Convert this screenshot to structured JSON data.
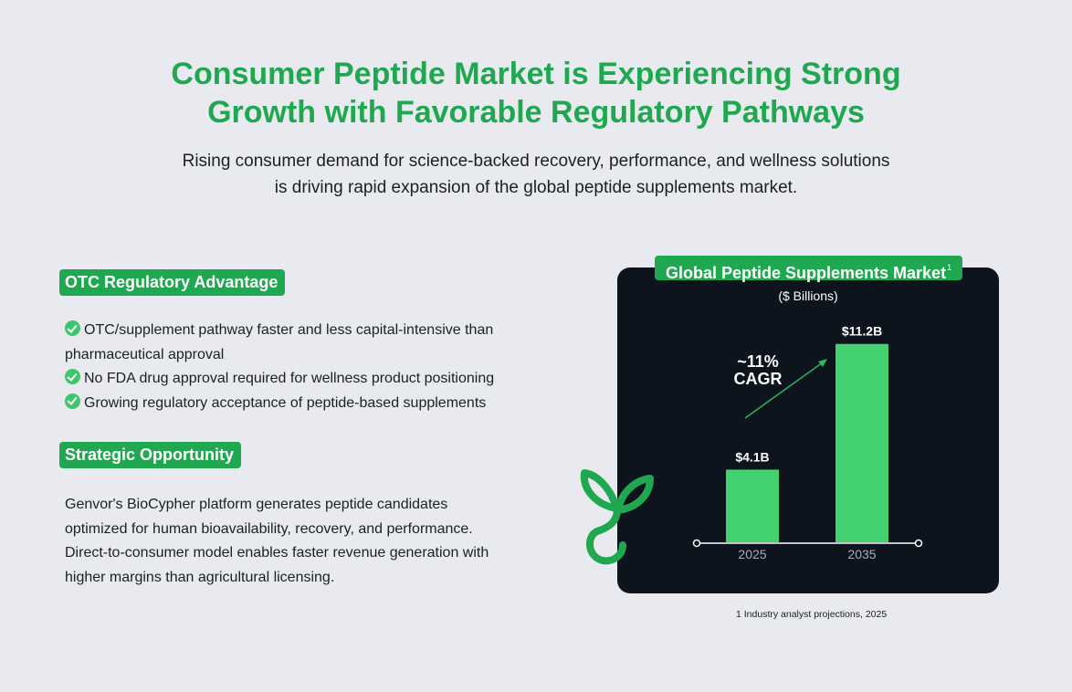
{
  "header": {
    "title_line1": "Consumer Peptide Market is Experiencing Strong",
    "title_line2": "Growth with Favorable Regulatory Pathways",
    "subtitle_line1": "Rising consumer demand for science-backed recovery, performance, and wellness solutions",
    "subtitle_line2": "is driving rapid expansion of the global peptide supplements market."
  },
  "otc_section": {
    "heading": "OTC Regulatory Advantage",
    "items": [
      {
        "line1": "OTC/supplement pathway faster and less capital-intensive than",
        "line2": "pharmaceutical approval"
      },
      {
        "line1": "No FDA drug approval required for wellness product positioning"
      },
      {
        "line1": "Growing regulatory acceptance of peptide-based supplements"
      }
    ]
  },
  "strategy_section": {
    "heading": "Strategic Opportunity",
    "lines": [
      "Genvor's BioCypher platform generates peptide candidates",
      "optimized for human bioavailability, recovery, and performance.",
      "Direct-to-consumer model enables faster revenue generation with",
      "higher margins than agricultural licensing."
    ]
  },
  "chart_data": {
    "type": "bar",
    "title": "Global Peptide Supplements Market",
    "title_footnote_mark": "1",
    "subtitle": "($ Billions)",
    "categories": [
      "2025",
      "2035"
    ],
    "values": [
      4.1,
      11.2
    ],
    "value_labels": [
      "$4.1B",
      "$11.2B"
    ],
    "annotation_line1": "~11%",
    "annotation_line2": "CAGR",
    "ylim": [
      0,
      12.5
    ],
    "grid": false,
    "legend": "none",
    "bar_color": "#44d170",
    "background_color": "#0d141d"
  },
  "footnote": "1 Industry analyst projections, 2025",
  "logo": {
    "icon": "sprout-logo-icon",
    "color": "#1fa84f"
  }
}
